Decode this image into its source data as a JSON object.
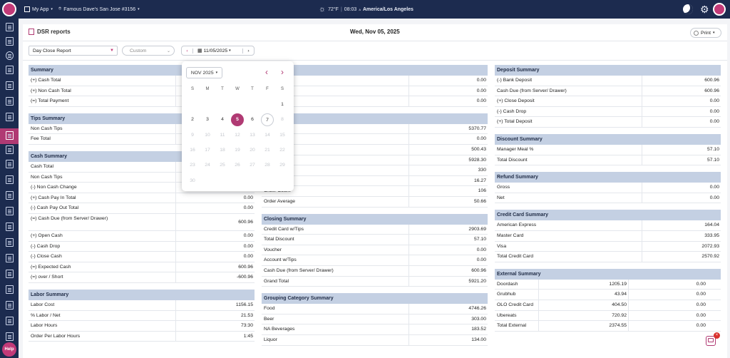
{
  "topbar": {
    "app_label": "My App",
    "store_label": "Famous Dave's San Jose #3156",
    "weather": "72°F",
    "time": "08:03",
    "time_suffix": "A",
    "timezone": "America/Los Angeles"
  },
  "sidebar": {
    "help_label": "Help"
  },
  "header": {
    "title": "DSR reports",
    "date": "Wed, Nov 05, 2025",
    "print_label": "Print"
  },
  "controls": {
    "report_type": "Day Close Report",
    "range": "Custom",
    "date_value": "11/05/2025"
  },
  "calendar": {
    "month_label": "NOV 2025",
    "weekdays": [
      "S",
      "M",
      "T",
      "W",
      "T",
      "F",
      "S"
    ],
    "weeks": [
      [
        "",
        "",
        "",
        "",
        "",
        "",
        "1"
      ],
      [
        "2",
        "3",
        "4",
        "5",
        "6",
        "7",
        "8"
      ],
      [
        "9",
        "10",
        "11",
        "12",
        "13",
        "14",
        "15"
      ],
      [
        "16",
        "17",
        "18",
        "19",
        "20",
        "21",
        "22"
      ],
      [
        "23",
        "24",
        "25",
        "26",
        "27",
        "28",
        "29"
      ],
      [
        "30",
        "",
        "",
        "",
        "",
        "",
        ""
      ]
    ],
    "selected": "5",
    "today": "7"
  },
  "col1": [
    {
      "title": "Summary",
      "rows": [
        [
          "(+) Cash Total",
          ""
        ],
        [
          "(+) Non Cash Total",
          ""
        ],
        [
          "(=) Total Payment",
          ""
        ]
      ]
    },
    {
      "title": "Tips Summary",
      "rows": [
        [
          "Non Cash Tips",
          ""
        ],
        [
          "Fee Total",
          ""
        ]
      ]
    },
    {
      "title": "Cash Summary",
      "rows": [
        [
          "Cash Total",
          ""
        ],
        [
          "Non Cash Tips",
          ""
        ],
        [
          "(-) Non Cash Change",
          "0.00"
        ],
        [
          "(+) Cash Pay In Total",
          "0.00"
        ],
        [
          "(-) Cash Pay Out Total",
          "0.00"
        ],
        [
          "(=) Cash Due (from Server/ Drawer)",
          "600.96"
        ],
        [
          "(+) Open Cash",
          "0.00"
        ],
        [
          "(-) Cash Drop",
          "0.00"
        ],
        [
          "(-) Close Cash",
          "0.00"
        ],
        [
          "(=) Expected Cash",
          "600.96"
        ],
        [
          "(=) over / Short",
          "-600.96"
        ]
      ]
    },
    {
      "title": "Labor Summary",
      "rows": [
        [
          "Labor Cost",
          "1156.15"
        ],
        [
          "% Labor / Net",
          "21.53"
        ],
        [
          "Labor Hours",
          "73:30"
        ],
        [
          "Order Per Labor Hours",
          "1:45"
        ]
      ]
    }
  ],
  "col2": [
    {
      "title": "ummary",
      "rows": [
        [
          "",
          "0.00"
        ],
        [
          "",
          "0.00"
        ],
        [
          "s",
          "0.00"
        ]
      ]
    },
    {
      "title": "",
      "rows": [
        [
          "",
          "5370.77"
        ],
        [
          "",
          "0.00"
        ],
        [
          "",
          "500.43"
        ],
        [
          "",
          "5928.30"
        ],
        [
          "",
          "330"
        ],
        [
          "",
          "16.27"
        ],
        [
          "Order Count",
          "106"
        ],
        [
          "Order Average",
          "50.66"
        ]
      ]
    },
    {
      "title": "Closing Summary",
      "rows": [
        [
          "Credit Card w/Tips",
          "2903.69"
        ],
        [
          "Total Discount",
          "57.10"
        ],
        [
          "Voucher",
          "0.00"
        ],
        [
          "Account w/Tips",
          "0.00"
        ],
        [
          "Cash Due (from Server/ Drawer)",
          "600.96"
        ],
        [
          "Grand Total",
          "5921.20"
        ]
      ]
    },
    {
      "title": "Grouping Category Summary",
      "rows": [
        [
          "Food",
          "4746.26"
        ],
        [
          "Beer",
          "303.00"
        ],
        [
          "NA Beverages",
          "183.52"
        ],
        [
          "Liquor",
          "134.00"
        ]
      ]
    }
  ],
  "col3": [
    {
      "title": "Deposit Summary",
      "rows": [
        [
          "(-) Bank Deposit",
          "600.96"
        ],
        [
          "Cash Due (from Server/ Drawer)",
          "600.96"
        ],
        [
          "(+) Close Deposit",
          "0.00"
        ],
        [
          "(-) Cash Drop",
          "0.00"
        ],
        [
          "(+) Total Deposit",
          "0.00"
        ]
      ]
    },
    {
      "title": "Discount Summary",
      "rows": [
        [
          "Manager Meal %",
          "57.10"
        ],
        [
          "Total Discount",
          "57.10"
        ]
      ]
    },
    {
      "title": "Refund Summary",
      "rows": [
        [
          "Gross",
          "0.00"
        ],
        [
          "Net",
          "0.00"
        ]
      ]
    },
    {
      "title": "Credit Card Summary",
      "rows": [
        [
          "American Express",
          "164.04"
        ],
        [
          "Master Card",
          "333.95"
        ],
        [
          "Visa",
          "2072.93"
        ],
        [
          "Total Credit Card",
          "2570.92"
        ]
      ]
    },
    {
      "title": "External Summary",
      "rows": [
        [
          "Doordash",
          "1205.19",
          "0.00"
        ],
        [
          "Grubhub",
          "43.94",
          "0.00"
        ],
        [
          "OLO Credit Card",
          "404.50",
          "0.00"
        ],
        [
          "Ubereats",
          "720.92",
          "0.00"
        ],
        [
          "Total External",
          "2374.55",
          "0.00"
        ]
      ]
    }
  ],
  "colors": {
    "nav": "#1c2b4f",
    "accent": "#b03a73",
    "section_header": "#c4d0e3"
  }
}
